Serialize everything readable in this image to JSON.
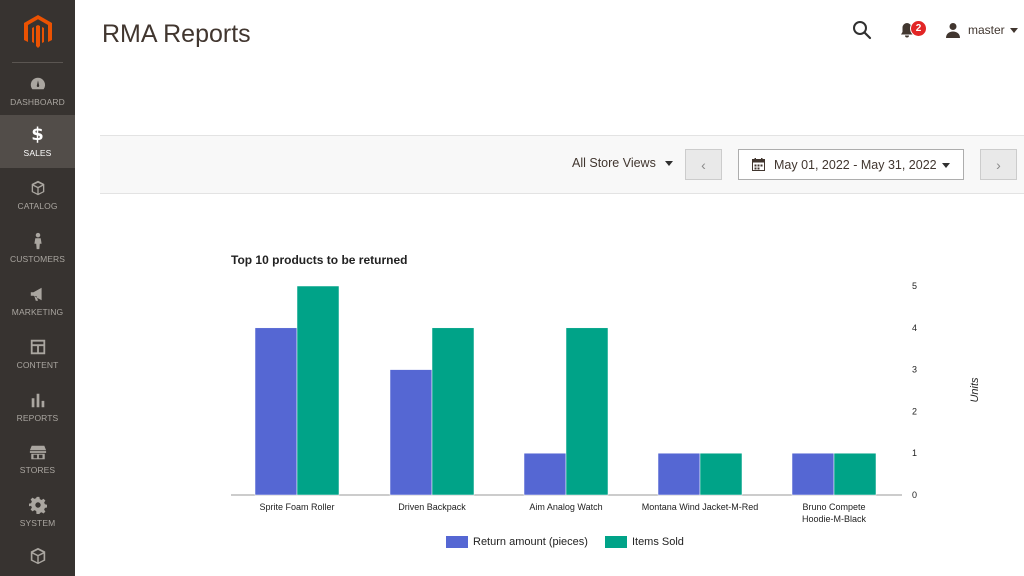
{
  "sidebar": {
    "items": [
      {
        "label": "DASHBOARD",
        "icon": "dashboard-icon",
        "active": false
      },
      {
        "label": "SALES",
        "icon": "dollar-icon",
        "active": true
      },
      {
        "label": "CATALOG",
        "icon": "box-icon",
        "active": false
      },
      {
        "label": "CUSTOMERS",
        "icon": "person-icon",
        "active": false
      },
      {
        "label": "MARKETING",
        "icon": "megaphone-icon",
        "active": false
      },
      {
        "label": "CONTENT",
        "icon": "layout-icon",
        "active": false
      },
      {
        "label": "REPORTS",
        "icon": "bar-chart-icon",
        "active": false
      },
      {
        "label": "STORES",
        "icon": "storefront-icon",
        "active": false
      },
      {
        "label": "SYSTEM",
        "icon": "gear-icon",
        "active": false
      },
      {
        "label": "",
        "icon": "cube-icon",
        "active": false
      }
    ],
    "colors": {
      "bg": "#373330",
      "active_bg": "#524d49",
      "logo": "#eb5202"
    }
  },
  "header": {
    "title": "RMA Reports",
    "notifications_count": "2",
    "user_name": "master"
  },
  "toolbar": {
    "store_view": "All Store Views",
    "date_range": "May 01, 2022 - May 31, 2022",
    "prev_symbol": "‹",
    "next_symbol": "›"
  },
  "chart_data": {
    "type": "bar",
    "title": "Top 10 products to be returned",
    "categories": [
      "Sprite Foam Roller",
      "Driven Backpack",
      "Aim Analog Watch",
      "Montana Wind Jacket-M-Red",
      "Bruno Compete Hoodie-M-Black"
    ],
    "series": [
      {
        "name": "Return amount (pieces)",
        "values": [
          4,
          3,
          1,
          1,
          1
        ],
        "color": "#5567d3"
      },
      {
        "name": "Items Sold",
        "values": [
          5,
          4,
          4,
          1,
          1
        ],
        "color": "#00a388"
      }
    ],
    "ylabel": "Units",
    "ylim": [
      0,
      5
    ],
    "yticks": [
      0,
      1,
      2,
      3,
      4,
      5
    ],
    "y_axis_side": "right",
    "legend_position": "bottom",
    "grid": false
  }
}
